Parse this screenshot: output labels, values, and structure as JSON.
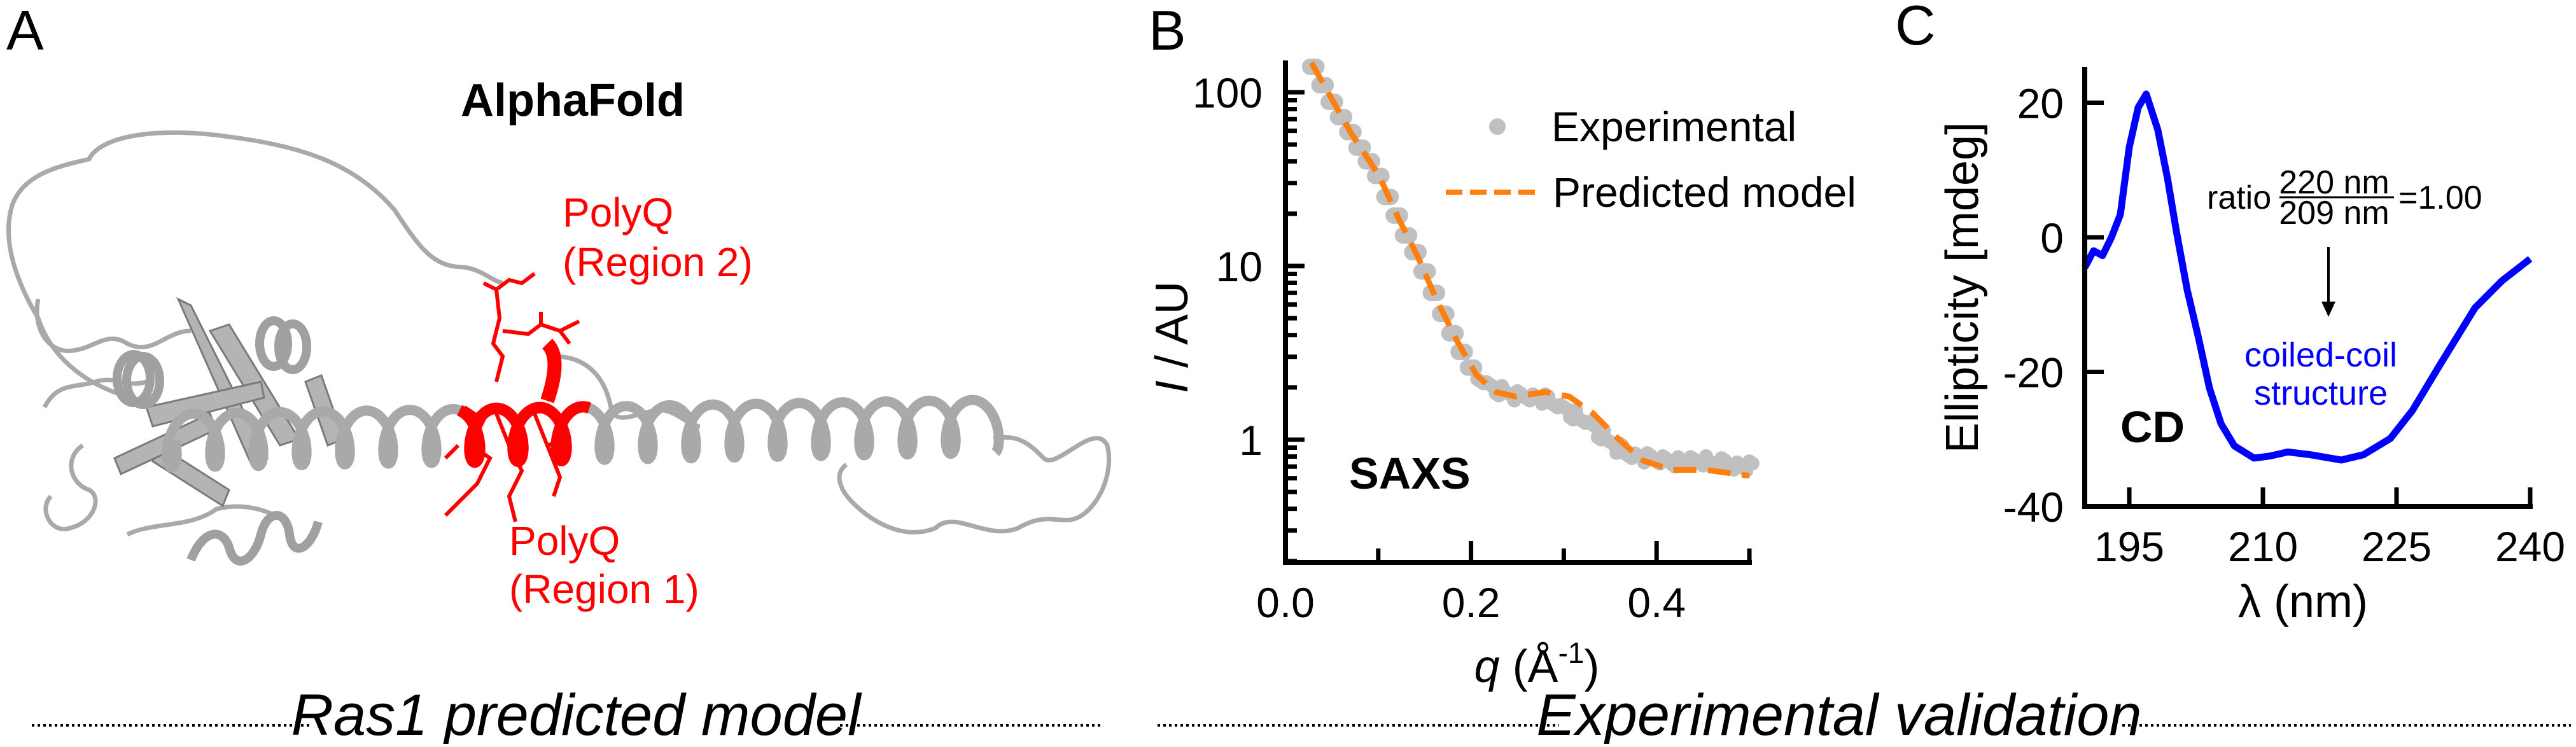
{
  "panel_a": {
    "letter": "A",
    "title": "AlphaFold",
    "region2_line1": "PolyQ",
    "region2_line2": "(Region 2)",
    "region1_line1": "PolyQ",
    "region1_line2": "(Region 1)",
    "caption": "Ras1 predicted model",
    "colors": {
      "protein": "#a9a9a9",
      "polyq": "#ff0000"
    }
  },
  "panel_b_letter": "B",
  "panel_c_letter": "C",
  "footer_right": "Experimental validation",
  "chart_data": [
    {
      "type": "scatter",
      "title": "SAXS",
      "xlabel_var": "q",
      "xlabel_unit": " (Å",
      "xlabel_sup": "-1",
      "xlabel_close": ")",
      "ylabel_var": "I",
      "ylabel_rest": " / AU",
      "xlim": [
        0,
        0.5
      ],
      "ylim": [
        0.2,
        150
      ],
      "yscale": "log",
      "xticks": [
        0.0,
        0.2,
        0.4
      ],
      "xtick_labels": [
        "0.0",
        "0.2",
        "0.4"
      ],
      "xminor": [
        0.1,
        0.3,
        0.5
      ],
      "yticks": [
        1,
        10,
        100
      ],
      "ytick_labels": [
        "1",
        "10",
        "100"
      ],
      "legend": {
        "position": "top-right",
        "entries": [
          "Experimental",
          "Predicted model"
        ]
      },
      "series": [
        {
          "name": "Experimental",
          "color": "#c0c0c0",
          "style": "points",
          "x": [
            0.03,
            0.04,
            0.05,
            0.06,
            0.07,
            0.08,
            0.09,
            0.1,
            0.11,
            0.12,
            0.13,
            0.14,
            0.15,
            0.16,
            0.17,
            0.18,
            0.19,
            0.2,
            0.21,
            0.22,
            0.23,
            0.24,
            0.25,
            0.26,
            0.27,
            0.28,
            0.29,
            0.3,
            0.31,
            0.32,
            0.33,
            0.34,
            0.35,
            0.36,
            0.37,
            0.38,
            0.39,
            0.4,
            0.41,
            0.42,
            0.43,
            0.44,
            0.45,
            0.46,
            0.47,
            0.48,
            0.49,
            0.5
          ],
          "y": [
            140,
            110,
            88,
            72,
            59,
            48,
            40,
            33,
            25,
            19.5,
            15,
            12,
            9.3,
            7,
            5.3,
            4.1,
            3.2,
            2.6,
            2.2,
            2.0,
            1.9,
            1.85,
            1.8,
            1.8,
            1.75,
            1.7,
            1.62,
            1.5,
            1.4,
            1.3,
            1.18,
            1.06,
            0.97,
            0.9,
            0.84,
            0.8,
            0.78,
            0.77,
            0.76,
            0.75,
            0.76,
            0.74,
            0.75,
            0.73,
            0.74,
            0.72,
            0.71,
            0.7
          ]
        },
        {
          "name": "Predicted model",
          "color": "#ff7f0e",
          "style": "dashed",
          "x": [
            0.028,
            0.07,
            0.101,
            0.122,
            0.143,
            0.164,
            0.185,
            0.206,
            0.227,
            0.248,
            0.28,
            0.306,
            0.332,
            0.358,
            0.385,
            0.416,
            0.453,
            0.5
          ],
          "y": [
            148,
            59,
            33,
            18.7,
            11.2,
            6.2,
            3.7,
            2.35,
            1.88,
            1.77,
            1.88,
            1.77,
            1.41,
            1.02,
            0.76,
            0.67,
            0.67,
            0.62
          ]
        }
      ]
    },
    {
      "type": "line",
      "title": "CD",
      "xlabel": "λ (nm)",
      "ylabel": "Ellipticity [mdeg]",
      "xlim": [
        190,
        240
      ],
      "ylim": [
        -40,
        25
      ],
      "xticks": [
        195,
        210,
        225,
        240
      ],
      "xtick_labels": [
        "195",
        "210",
        "225",
        "240"
      ],
      "yticks": [
        20,
        0,
        -20,
        -40
      ],
      "ytick_labels": [
        "20",
        "0",
        "-20",
        "-40"
      ],
      "annotation": {
        "ratio_label": "ratio",
        "numerator": "220 nm",
        "denominator": "209 nm",
        "value": "=1.00",
        "structure_line1": "coiled-coil",
        "structure_line2": "structure"
      },
      "series": [
        {
          "name": "CD spectrum",
          "color": "#0000ff",
          "x": [
            190,
            191,
            192,
            193,
            194,
            195,
            196,
            196.9,
            198.2,
            199.3,
            200.3,
            201.5,
            202.8,
            204,
            205.3,
            206.8,
            209,
            210.8,
            212.8,
            215.3,
            218.8,
            221.3,
            224.3,
            226.8,
            229.8,
            233.8,
            236.8,
            240
          ],
          "y": [
            -4.5,
            -2,
            -2.7,
            0,
            3.4,
            13.4,
            19.3,
            21.3,
            16,
            8.7,
            0.8,
            -7.8,
            -15.1,
            -22.4,
            -27.7,
            -31,
            -32.8,
            -32.5,
            -31.9,
            -32.3,
            -33.1,
            -32.3,
            -29.9,
            -25.7,
            -19.1,
            -10.5,
            -6.5,
            -3.2
          ]
        }
      ]
    }
  ]
}
